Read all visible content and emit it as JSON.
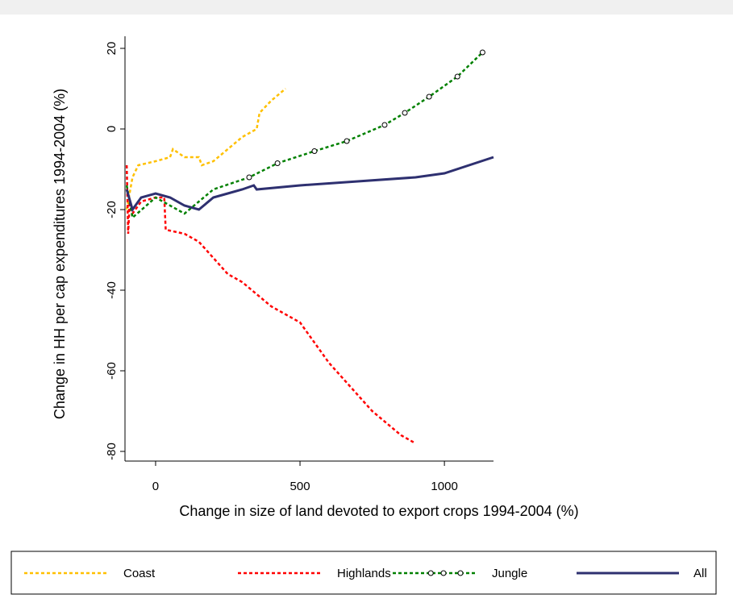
{
  "chart_data": {
    "type": "line",
    "x_label": "Change in size of land devoted to export crops 1994-2004  (%)",
    "y_label": "Change in HH per cap expenditures 1994-2004 (%)",
    "xlim": [
      -106,
      1170
    ],
    "ylim": [
      -82,
      23
    ],
    "xticks": [
      0,
      500,
      1000
    ],
    "yticks": [
      20,
      0,
      -20,
      -40,
      -60,
      -80
    ],
    "series": [
      {
        "name": "Coast",
        "color": "#ffc000",
        "line_style": "dashed",
        "x": [
          -100,
          -80,
          -60,
          0,
          50,
          60,
          100,
          150,
          160,
          200,
          250,
          300,
          350,
          360,
          400,
          450
        ],
        "values": [
          -20,
          -12,
          -9,
          -8,
          -7,
          -5,
          -7,
          -7,
          -9,
          -8,
          -5,
          -2,
          0,
          4,
          7,
          10
        ]
      },
      {
        "name": "Highlands",
        "color": "#ff0000",
        "line_style": "dashed",
        "x": [
          -100,
          -95,
          -90,
          -80,
          -50,
          0,
          30,
          35,
          100,
          150,
          200,
          250,
          300,
          350,
          400,
          450,
          500,
          550,
          600,
          650,
          700,
          750,
          800,
          850,
          900
        ],
        "values": [
          -9,
          -26,
          -18,
          -21,
          -18,
          -17,
          -17,
          -25,
          -26,
          -28,
          -32,
          -36,
          -38,
          -41,
          -44,
          -46,
          -48,
          -53,
          -58,
          -62,
          -66,
          -70,
          -73,
          -76,
          -78
        ]
      },
      {
        "name": "Jungle",
        "color": "#008000",
        "line_style": "dashed",
        "marker": "circle",
        "x": [
          -100,
          -80,
          0,
          100,
          200,
          324,
          422,
          550,
          662,
          793,
          863,
          947,
          1045,
          1132
        ],
        "values": [
          -14,
          -22,
          -17,
          -21,
          -15,
          -12,
          -8.5,
          -5.5,
          -3,
          1,
          4,
          8,
          13,
          19
        ]
      },
      {
        "name": "All",
        "color": "#2e3070",
        "line_style": "solid",
        "x": [
          -100,
          -80,
          -50,
          0,
          50,
          100,
          150,
          200,
          250,
          300,
          340,
          350,
          500,
          700,
          900,
          1000,
          1170
        ],
        "values": [
          -15,
          -20,
          -17,
          -16,
          -17,
          -19,
          -20,
          -17,
          -16,
          -15,
          -14,
          -15,
          -14,
          -13,
          -12,
          -11,
          -7
        ]
      }
    ]
  }
}
